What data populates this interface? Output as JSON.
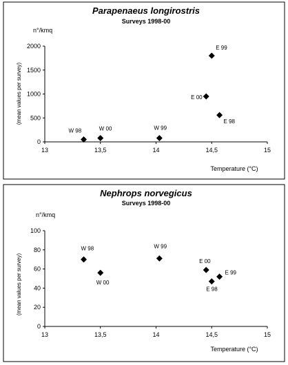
{
  "chart_data": [
    {
      "type": "scatter",
      "title": "Parapenaeus longirostris",
      "subtitle": "Surveys 1998-00",
      "unit": "n°/kmq",
      "ylabel": "(mean values per survey)",
      "xlabel": "Temperature (°C)",
      "xlim": [
        13,
        15
      ],
      "ylim": [
        0,
        2000
      ],
      "x_ticks": [
        "13",
        "13,5",
        "14",
        "14,5",
        "15"
      ],
      "y_ticks": [
        "0",
        "500",
        "1000",
        "1500",
        "2000"
      ],
      "points": [
        {
          "label": "W 98",
          "x": 13.35,
          "y": 50
        },
        {
          "label": "W 00",
          "x": 13.5,
          "y": 80
        },
        {
          "label": "W 99",
          "x": 14.03,
          "y": 80
        },
        {
          "label": "E 00",
          "x": 14.45,
          "y": 950
        },
        {
          "label": "E 99",
          "x": 14.5,
          "y": 1800
        },
        {
          "label": "E 98",
          "x": 14.57,
          "y": 560
        }
      ],
      "grid": false
    },
    {
      "type": "scatter",
      "title": "Nephrops norvegicus",
      "subtitle": "Surveys 1998-00",
      "unit": "n°/kmq",
      "ylabel": "(mean values per survey)",
      "xlabel": "Temperature (°C)",
      "xlim": [
        13,
        15
      ],
      "ylim": [
        0,
        100
      ],
      "x_ticks": [
        "13",
        "13,5",
        "14",
        "14,5",
        "15"
      ],
      "y_ticks": [
        "0",
        "20",
        "40",
        "60",
        "80",
        "100"
      ],
      "points": [
        {
          "label": "W 98",
          "x": 13.35,
          "y": 70
        },
        {
          "label": "W 00",
          "x": 13.5,
          "y": 56
        },
        {
          "label": "W 99",
          "x": 14.03,
          "y": 71
        },
        {
          "label": "E 00",
          "x": 14.45,
          "y": 59
        },
        {
          "label": "E 99",
          "x": 14.57,
          "y": 52
        },
        {
          "label": "E 98",
          "x": 14.5,
          "y": 47
        }
      ],
      "grid": false
    }
  ]
}
